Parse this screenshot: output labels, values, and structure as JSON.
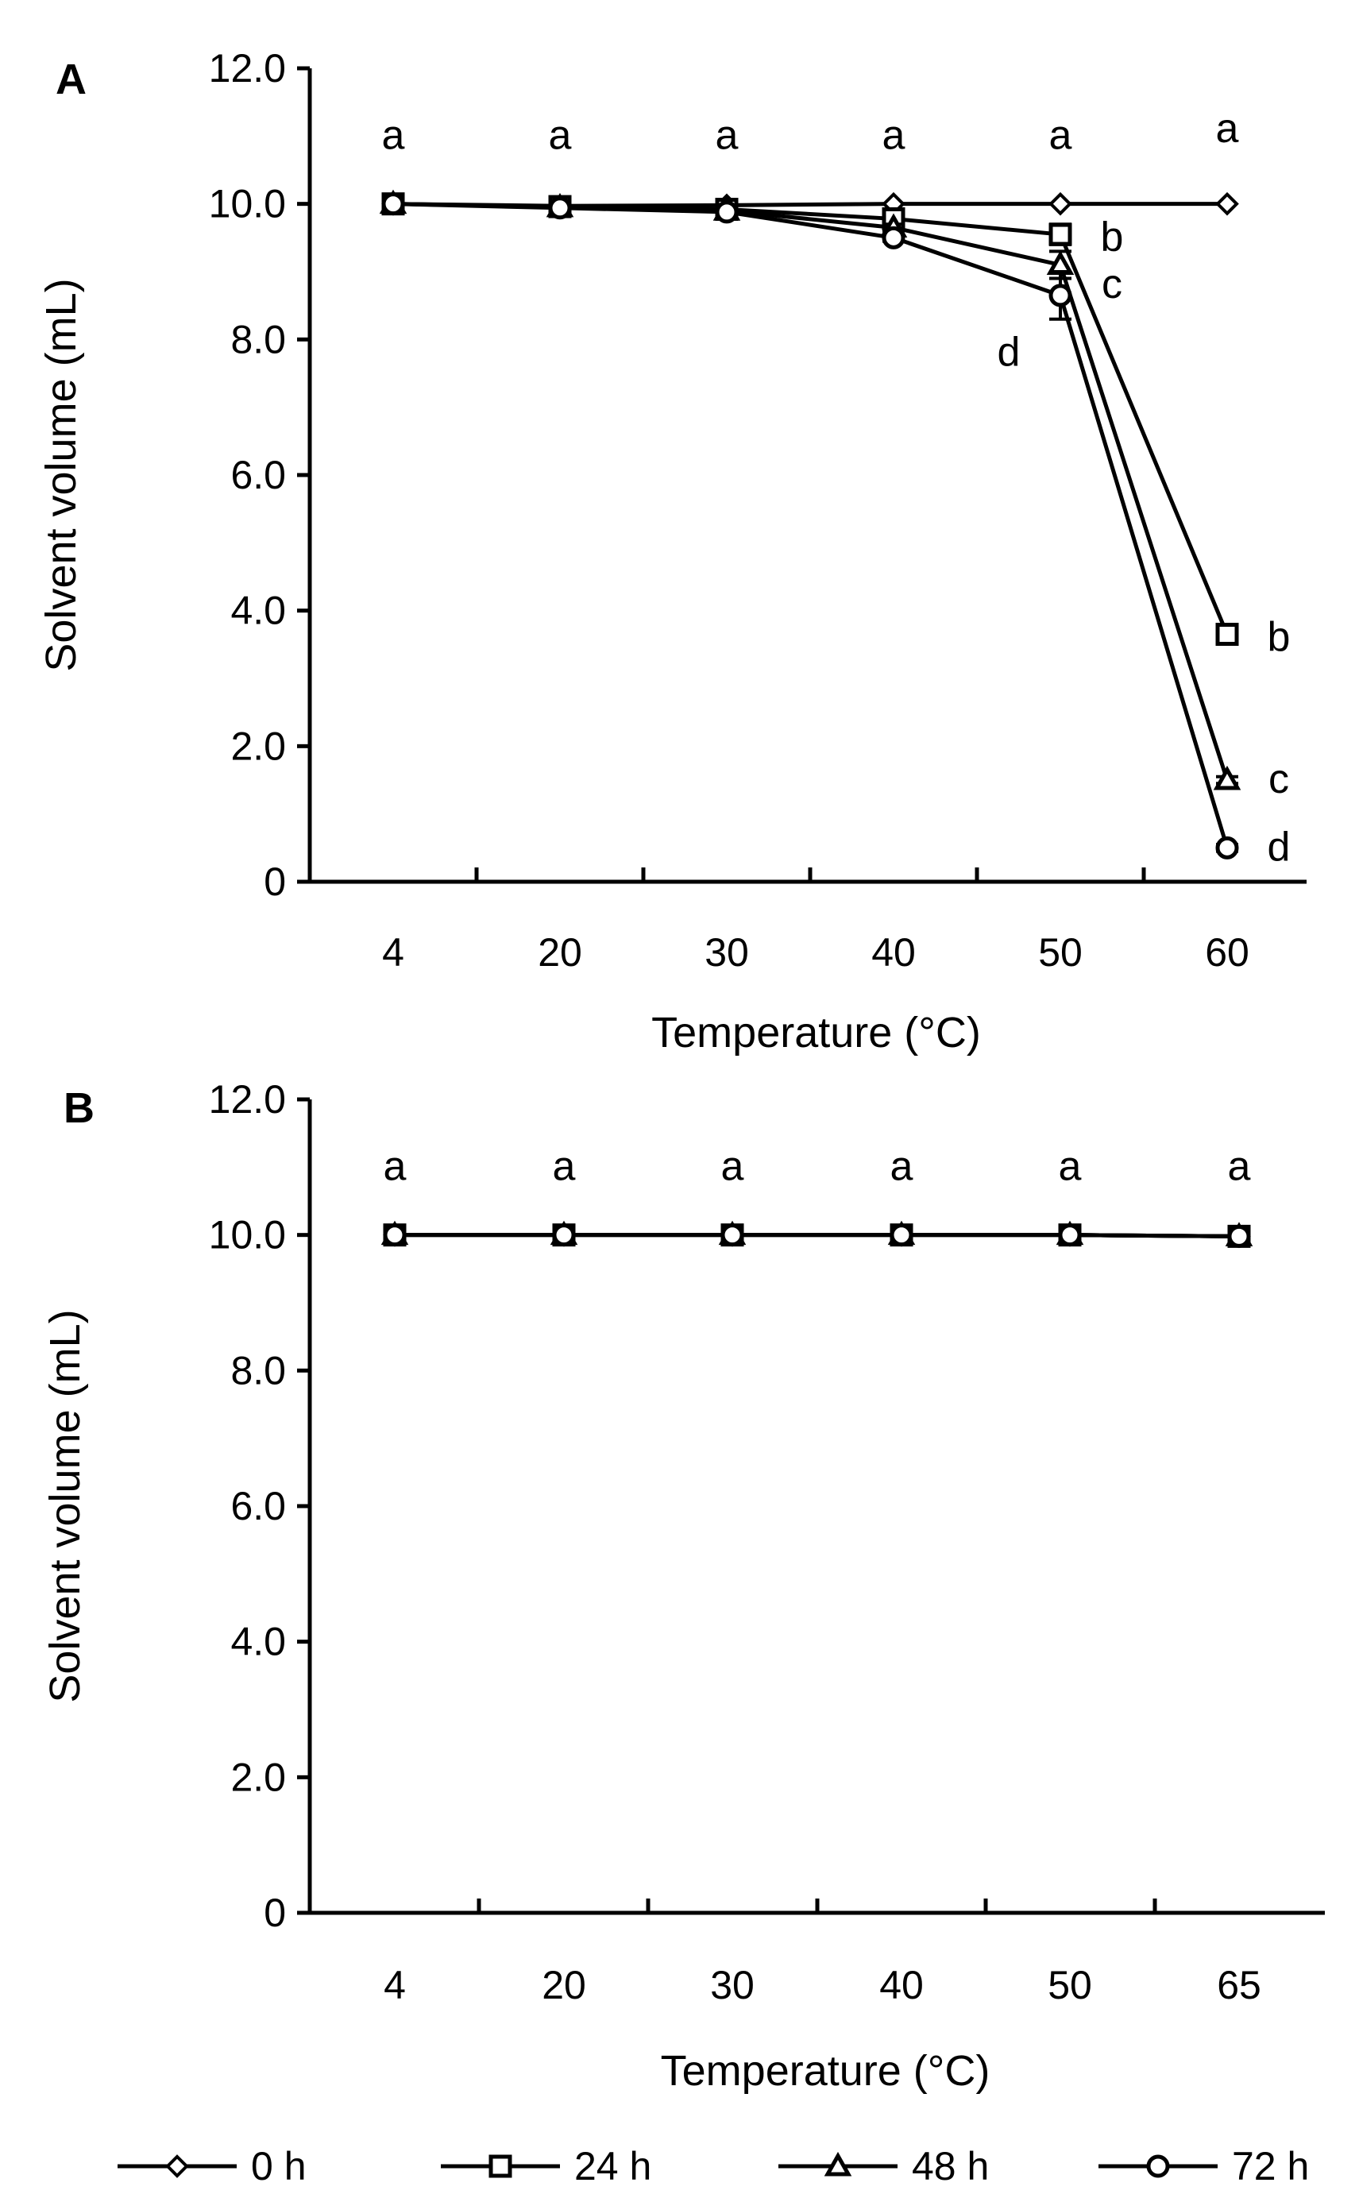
{
  "chart_data": [
    {
      "panel_label": "A",
      "type": "line",
      "title": "",
      "xlabel": "Temperature (°C)",
      "ylabel": "Solvent volume (mL)",
      "categories": [
        "4",
        "20",
        "30",
        "40",
        "50",
        "60"
      ],
      "y_ticks": [
        "0",
        "2.0",
        "4.0",
        "6.0",
        "8.0",
        "10.0",
        "12.0"
      ],
      "ylim": [
        0,
        12
      ],
      "grid": false,
      "series": [
        {
          "name": "0 h",
          "marker": "diamond",
          "values": [
            10.0,
            9.97,
            9.98,
            10.0,
            10.0,
            10.0
          ],
          "errors": [
            0,
            0,
            0,
            0,
            0,
            0
          ]
        },
        {
          "name": "24 h",
          "marker": "square",
          "values": [
            10.0,
            9.96,
            9.92,
            9.78,
            9.55,
            3.65
          ],
          "errors": [
            0,
            0,
            0,
            0.05,
            0.15,
            0.1
          ]
        },
        {
          "name": "48 h",
          "marker": "triangle",
          "values": [
            10.0,
            9.95,
            9.9,
            9.65,
            9.1,
            1.5
          ],
          "errors": [
            0,
            0,
            0,
            0.05,
            0.2,
            0.05
          ]
        },
        {
          "name": "72 h",
          "marker": "circle",
          "values": [
            10.0,
            9.94,
            9.88,
            9.5,
            8.65,
            0.5
          ],
          "errors": [
            0,
            0,
            0,
            0.05,
            0.35,
            0.05
          ]
        }
      ],
      "annotations": [
        {
          "x": "4",
          "y": 11.0,
          "text": "a"
        },
        {
          "x": "20",
          "y": 11.0,
          "text": "a"
        },
        {
          "x": "30",
          "y": 11.0,
          "text": "a"
        },
        {
          "x": "40",
          "y": 11.0,
          "text": "a"
        },
        {
          "x": "50",
          "y": 11.0,
          "text": "a"
        },
        {
          "x": "60",
          "y": 11.1,
          "text": "a"
        },
        {
          "x": "50",
          "y": 9.5,
          "text": "b",
          "dx": 1
        },
        {
          "x": "50",
          "y": 8.8,
          "text": "c",
          "dx": 1
        },
        {
          "x": "50",
          "y": 7.8,
          "text": "d",
          "dx": -1
        },
        {
          "x": "60",
          "y": 3.6,
          "text": "b",
          "dx": 1
        },
        {
          "x": "60",
          "y": 1.5,
          "text": "c",
          "dx": 1
        },
        {
          "x": "60",
          "y": 0.5,
          "text": "d",
          "dx": 1
        }
      ]
    },
    {
      "panel_label": "B",
      "type": "line",
      "title": "",
      "xlabel": "Temperature (°C)",
      "ylabel": "Solvent volume (mL)",
      "categories": [
        "4",
        "20",
        "30",
        "40",
        "50",
        "65"
      ],
      "y_ticks": [
        "0",
        "2.0",
        "4.0",
        "6.0",
        "8.0",
        "10.0",
        "12.0"
      ],
      "ylim": [
        0,
        12
      ],
      "grid": false,
      "series": [
        {
          "name": "0 h",
          "marker": "diamond",
          "values": [
            10.0,
            10.0,
            10.0,
            10.0,
            10.0,
            9.98
          ],
          "errors": [
            0,
            0,
            0,
            0,
            0,
            0
          ]
        },
        {
          "name": "24 h",
          "marker": "square",
          "values": [
            10.0,
            10.0,
            10.0,
            10.0,
            10.0,
            9.98
          ],
          "errors": [
            0,
            0,
            0,
            0,
            0,
            0
          ]
        },
        {
          "name": "48 h",
          "marker": "triangle",
          "values": [
            10.0,
            10.0,
            10.0,
            10.0,
            10.0,
            9.98
          ],
          "errors": [
            0,
            0,
            0,
            0,
            0,
            0
          ]
        },
        {
          "name": "72 h",
          "marker": "circle",
          "values": [
            10.0,
            10.0,
            10.0,
            10.0,
            10.0,
            9.98
          ],
          "errors": [
            0,
            0,
            0,
            0,
            0,
            0
          ]
        }
      ],
      "annotations": [
        {
          "x": "4",
          "y": 11.0,
          "text": "a"
        },
        {
          "x": "20",
          "y": 11.0,
          "text": "a"
        },
        {
          "x": "30",
          "y": 11.0,
          "text": "a"
        },
        {
          "x": "40",
          "y": 11.0,
          "text": "a"
        },
        {
          "x": "50",
          "y": 11.0,
          "text": "a"
        },
        {
          "x": "65",
          "y": 11.0,
          "text": "a"
        }
      ]
    }
  ],
  "legend": {
    "placement": "bottom",
    "entries": [
      {
        "name": "0 h",
        "marker": "diamond"
      },
      {
        "name": "24 h",
        "marker": "square"
      },
      {
        "name": "48 h",
        "marker": "triangle"
      },
      {
        "name": "72 h",
        "marker": "circle"
      }
    ]
  },
  "colors": {
    "line": "#000000",
    "background": "#ffffff"
  }
}
